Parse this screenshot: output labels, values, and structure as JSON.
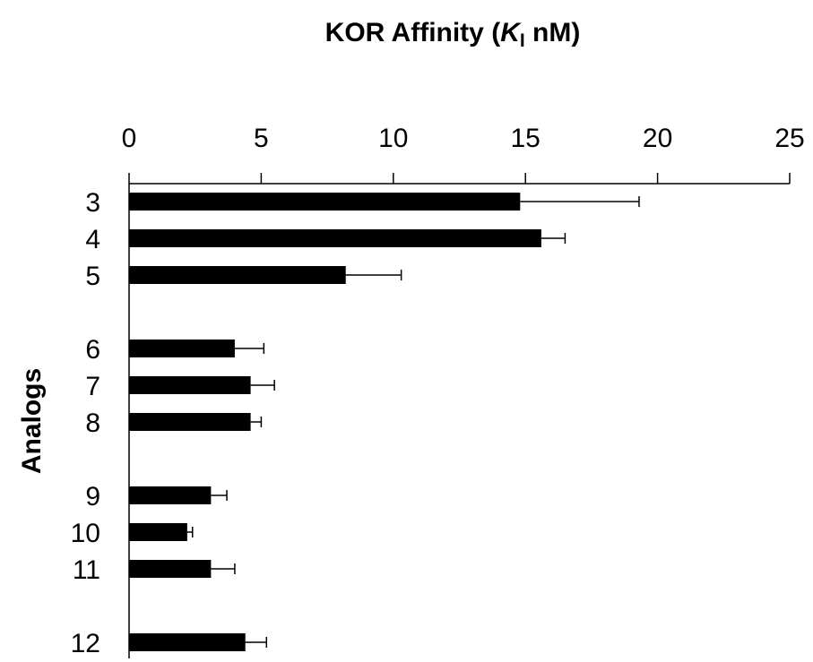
{
  "chart_data": {
    "type": "bar",
    "orientation": "horizontal",
    "title": {
      "prefix": "KOR Affinity (",
      "italic": "K",
      "subscript": "I",
      "suffix": " nM)"
    },
    "xlabel": "",
    "ylabel": "Analogs",
    "xlim": [
      0,
      25
    ],
    "x_ticks": [
      0,
      5,
      10,
      15,
      20,
      25
    ],
    "x_tick_labels": [
      "0",
      "5",
      "10",
      "15",
      "20",
      "25"
    ],
    "axis_position": "top",
    "grid": false,
    "bar_color": "#000000",
    "groups": [
      {
        "categories": [
          "3",
          "4",
          "5"
        ],
        "values": [
          14.8,
          15.6,
          8.2
        ],
        "errors": [
          4.5,
          0.9,
          2.1
        ]
      },
      {
        "categories": [
          "6",
          "7",
          "8"
        ],
        "values": [
          4.0,
          4.6,
          4.6
        ],
        "errors": [
          1.1,
          0.9,
          0.4
        ]
      },
      {
        "categories": [
          "9",
          "10",
          "11"
        ],
        "values": [
          3.1,
          2.2,
          3.1
        ],
        "errors": [
          0.6,
          0.2,
          0.9
        ]
      },
      {
        "categories": [
          "12"
        ],
        "values": [
          4.4
        ],
        "errors": [
          0.8
        ]
      }
    ]
  }
}
